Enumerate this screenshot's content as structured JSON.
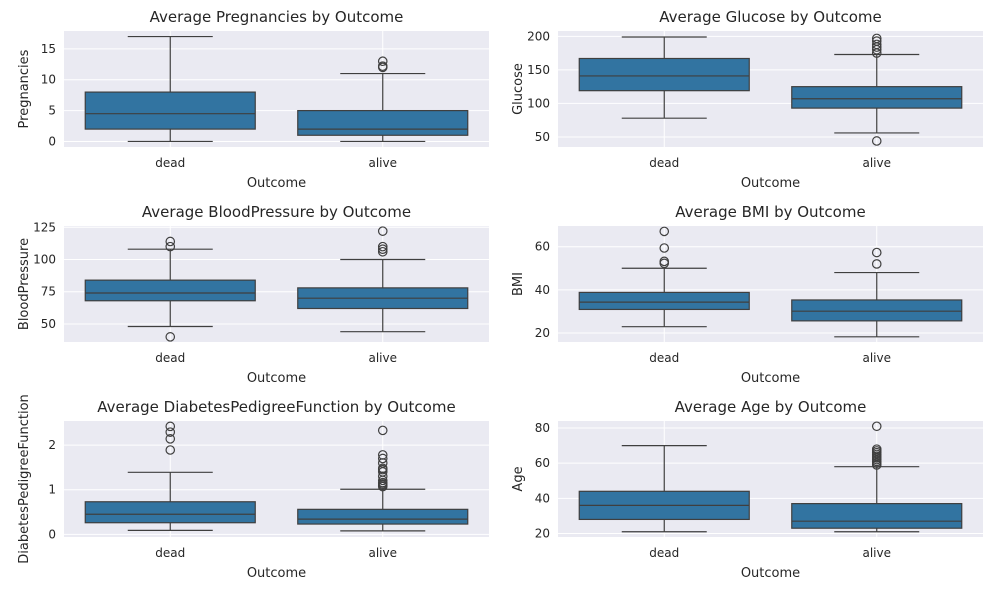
{
  "chart_data": [
    {
      "type": "box",
      "title": "Average Pregnancies by Outcome",
      "xlabel": "Outcome",
      "ylabel": "Pregnancies",
      "ylim": [
        -0.9,
        17.9
      ],
      "yticks": [
        0,
        5,
        10,
        15
      ],
      "categories": [
        "dead",
        "alive"
      ],
      "boxes": [
        {
          "category": "dead",
          "whisker_low": 0,
          "q1": 2,
          "median": 4.5,
          "q3": 8,
          "whisker_high": 17,
          "outliers": []
        },
        {
          "category": "alive",
          "whisker_low": 0,
          "q1": 1,
          "median": 2,
          "q3": 5,
          "whisker_high": 11,
          "outliers": [
            12,
            12.2,
            13
          ]
        }
      ]
    },
    {
      "type": "box",
      "title": "Average Glucose by Outcome",
      "xlabel": "Outcome",
      "ylabel": "Glucose",
      "ylim": [
        35,
        208
      ],
      "yticks": [
        50,
        100,
        150,
        200
      ],
      "categories": [
        "dead",
        "alive"
      ],
      "boxes": [
        {
          "category": "dead",
          "whisker_low": 78,
          "q1": 119,
          "median": 141,
          "q3": 167,
          "whisker_high": 199,
          "outliers": []
        },
        {
          "category": "alive",
          "whisker_low": 56,
          "q1": 93,
          "median": 107,
          "q3": 125,
          "whisker_high": 173,
          "outliers": [
            44,
            175,
            180,
            184,
            188,
            193,
            197
          ]
        }
      ]
    },
    {
      "type": "box",
      "title": "Average BloodPressure by Outcome",
      "xlabel": "Outcome",
      "ylabel": "BloodPressure",
      "ylim": [
        36,
        126
      ],
      "yticks": [
        50,
        75,
        100,
        125
      ],
      "categories": [
        "dead",
        "alive"
      ],
      "boxes": [
        {
          "category": "dead",
          "whisker_low": 48,
          "q1": 68,
          "median": 74,
          "q3": 84,
          "whisker_high": 108,
          "outliers": [
            40,
            110,
            114
          ]
        },
        {
          "category": "alive",
          "whisker_low": 44,
          "q1": 62,
          "median": 70,
          "q3": 78,
          "whisker_high": 100,
          "outliers": [
            106,
            108,
            110,
            122
          ]
        }
      ]
    },
    {
      "type": "box",
      "title": "Average BMI by Outcome",
      "xlabel": "Outcome",
      "ylabel": "BMI",
      "ylim": [
        15.8,
        69.6
      ],
      "yticks": [
        20,
        40,
        60
      ],
      "categories": [
        "dead",
        "alive"
      ],
      "boxes": [
        {
          "category": "dead",
          "whisker_low": 22.9,
          "q1": 30.9,
          "median": 34.3,
          "q3": 38.8,
          "whisker_high": 50,
          "outliers": [
            52.3,
            53.2,
            59.4,
            67.1
          ]
        },
        {
          "category": "alive",
          "whisker_low": 18.2,
          "q1": 25.6,
          "median": 30.1,
          "q3": 35.3,
          "whisker_high": 48,
          "outliers": [
            52,
            57.3
          ]
        }
      ]
    },
    {
      "type": "box",
      "title": "Average DiabetesPedigreeFunction by Outcome",
      "xlabel": "Outcome",
      "ylabel": "DiabetesPedigreeFunction",
      "ylim": [
        -0.06,
        2.54
      ],
      "yticks": [
        0,
        1,
        2
      ],
      "categories": [
        "dead",
        "alive"
      ],
      "boxes": [
        {
          "category": "dead",
          "whisker_low": 0.088,
          "q1": 0.26,
          "median": 0.45,
          "q3": 0.73,
          "whisker_high": 1.39,
          "outliers": [
            1.89,
            2.14,
            2.29,
            2.42
          ]
        },
        {
          "category": "alive",
          "whisker_low": 0.078,
          "q1": 0.23,
          "median": 0.34,
          "q3": 0.56,
          "whisker_high": 1.01,
          "outliers": [
            1.07,
            1.1,
            1.13,
            1.16,
            1.21,
            1.3,
            1.4,
            1.45,
            1.48,
            1.6,
            1.7,
            1.78,
            2.33
          ]
        }
      ]
    },
    {
      "type": "box",
      "title": "Average Age by Outcome",
      "xlabel": "Outcome",
      "ylabel": "Age",
      "ylim": [
        18,
        84
      ],
      "yticks": [
        20,
        40,
        60,
        80
      ],
      "categories": [
        "dead",
        "alive"
      ],
      "boxes": [
        {
          "category": "dead",
          "whisker_low": 21,
          "q1": 28,
          "median": 36,
          "q3": 44,
          "whisker_high": 70,
          "outliers": []
        },
        {
          "category": "alive",
          "whisker_low": 21,
          "q1": 23,
          "median": 27,
          "q3": 37,
          "whisker_high": 58,
          "outliers": [
            59,
            60,
            61,
            62,
            63,
            64,
            65,
            66,
            67,
            68,
            81
          ]
        }
      ]
    }
  ],
  "colors": {
    "background": "#eaeaf2",
    "grid": "#ffffff",
    "box_fill": "#3274a1",
    "lines": "#3f3f3f",
    "text": "#262626"
  }
}
